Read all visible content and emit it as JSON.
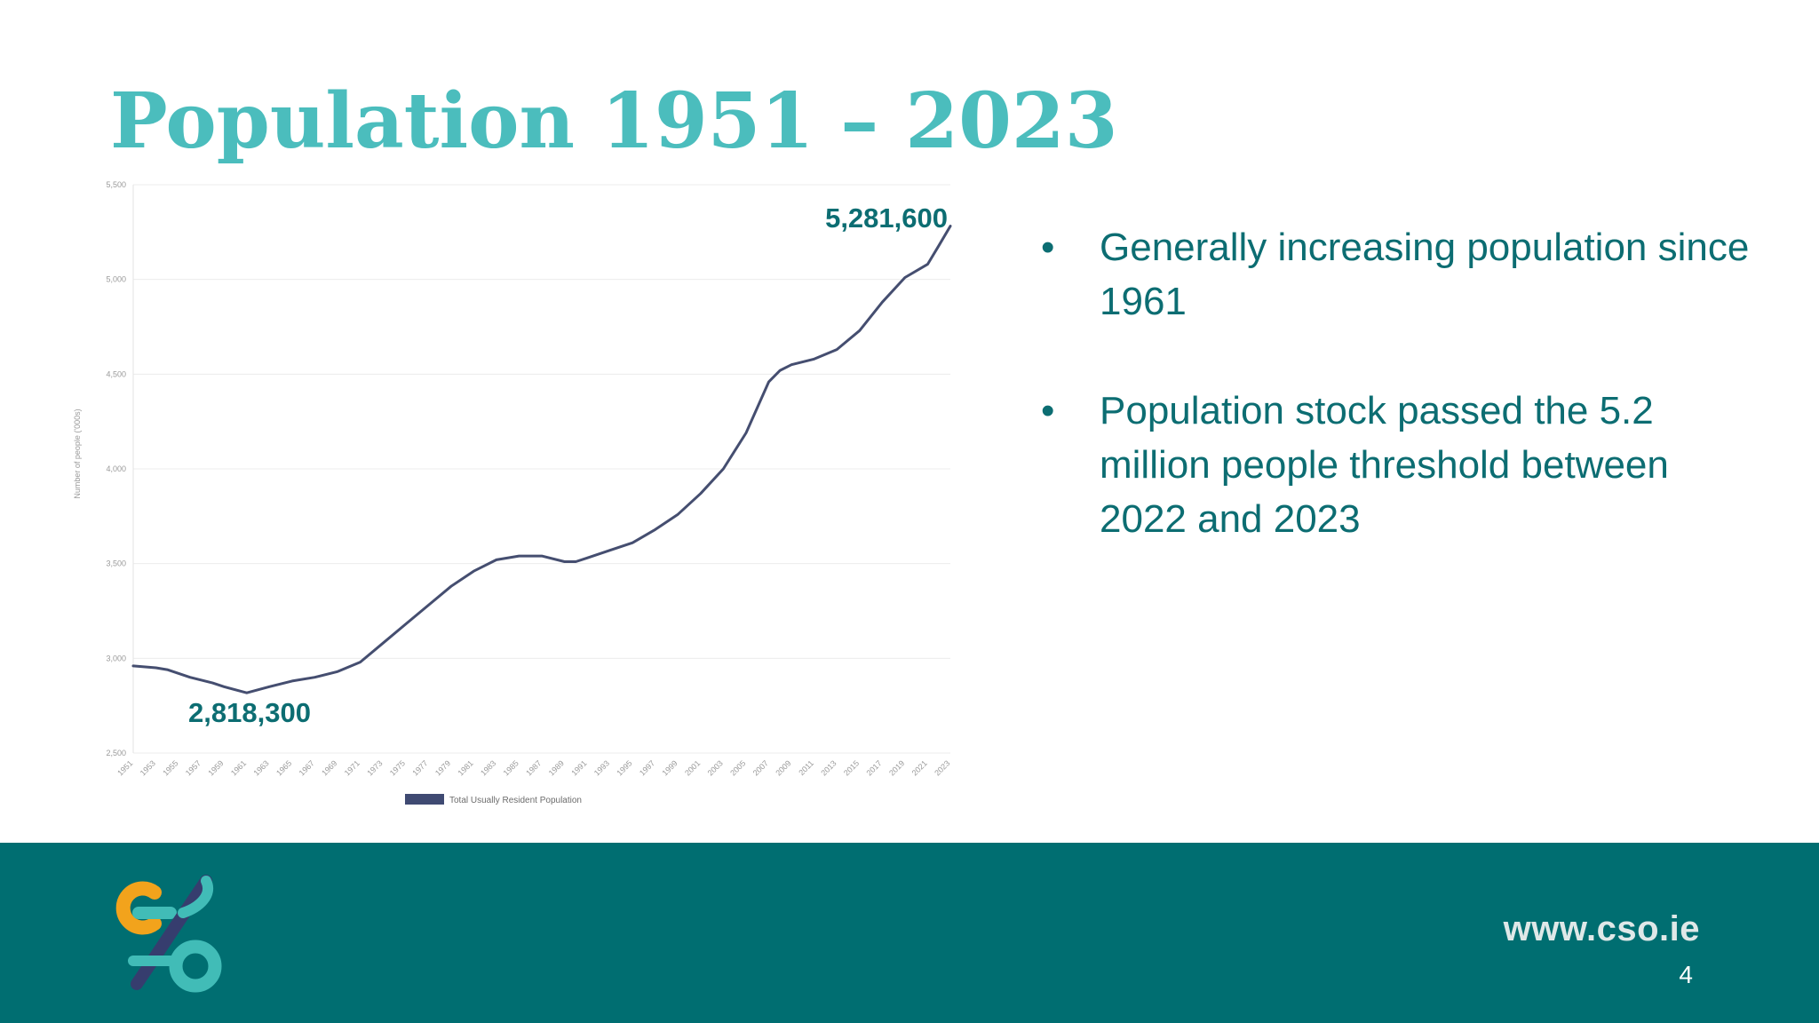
{
  "slide": {
    "title": "Population 1951 – 2023",
    "page_number": "4",
    "website": "www.cso.ie"
  },
  "bullets": [
    {
      "marker": "•",
      "text": "Generally increasing population since 1961"
    },
    {
      "marker": "•",
      "text": "Population stock passed the 5.2 million people threshold between 2022 and 2023"
    }
  ],
  "colors": {
    "title": "#4bbdbd",
    "text": "#0c6d72",
    "footer": "#006e71",
    "series_line": "#454e70",
    "legend_swatch": "#3f4a72",
    "logo_orange": "#f2a31c",
    "logo_teal": "#41bcb7",
    "logo_navy": "#363d6e"
  },
  "logo": {
    "name": "cso-logo-icon"
  },
  "chart_data": {
    "type": "line",
    "ylabel": "Number of people ('000s)",
    "xlabel": "",
    "ylim": [
      2500,
      5500
    ],
    "yticks": [
      2500,
      3000,
      3500,
      4000,
      4500,
      5000,
      5500
    ],
    "ytick_labels": [
      "2,500",
      "3,000",
      "3,500",
      "4,000",
      "4,500",
      "5,000",
      "5,500"
    ],
    "xlim": [
      1951,
      2023
    ],
    "xticks": [
      1951,
      1953,
      1955,
      1957,
      1959,
      1961,
      1963,
      1965,
      1967,
      1969,
      1971,
      1973,
      1975,
      1977,
      1979,
      1981,
      1983,
      1985,
      1987,
      1989,
      1991,
      1993,
      1995,
      1997,
      1999,
      2001,
      2003,
      2005,
      2007,
      2009,
      2011,
      2013,
      2015,
      2017,
      2019,
      2021,
      2023
    ],
    "grid": "horizontal",
    "legend_position": "bottom",
    "series": [
      {
        "name": "Total Usually Resident Population",
        "x": [
          1951,
          1953,
          1954,
          1956,
          1958,
          1959,
          1961,
          1963,
          1965,
          1967,
          1969,
          1971,
          1973,
          1975,
          1977,
          1979,
          1981,
          1983,
          1985,
          1987,
          1989,
          1990,
          1991,
          1993,
          1995,
          1997,
          1999,
          2001,
          2003,
          2005,
          2007,
          2008,
          2009,
          2011,
          2013,
          2015,
          2017,
          2019,
          2021,
          2022,
          2023
        ],
        "values": [
          2960,
          2950,
          2940,
          2900,
          2870,
          2850,
          2818,
          2850,
          2880,
          2900,
          2930,
          2980,
          3080,
          3180,
          3280,
          3380,
          3460,
          3520,
          3540,
          3540,
          3510,
          3510,
          3530,
          3570,
          3610,
          3680,
          3760,
          3870,
          4000,
          4190,
          4460,
          4520,
          4550,
          4580,
          4630,
          4730,
          4880,
          5010,
          5080,
          5180,
          5281.6
        ]
      }
    ],
    "annotations": [
      {
        "text": "5,281,600",
        "x": 2023,
        "y": 5281.6
      },
      {
        "text": "2,818,300",
        "x": 1961,
        "y": 2818.3
      }
    ]
  }
}
